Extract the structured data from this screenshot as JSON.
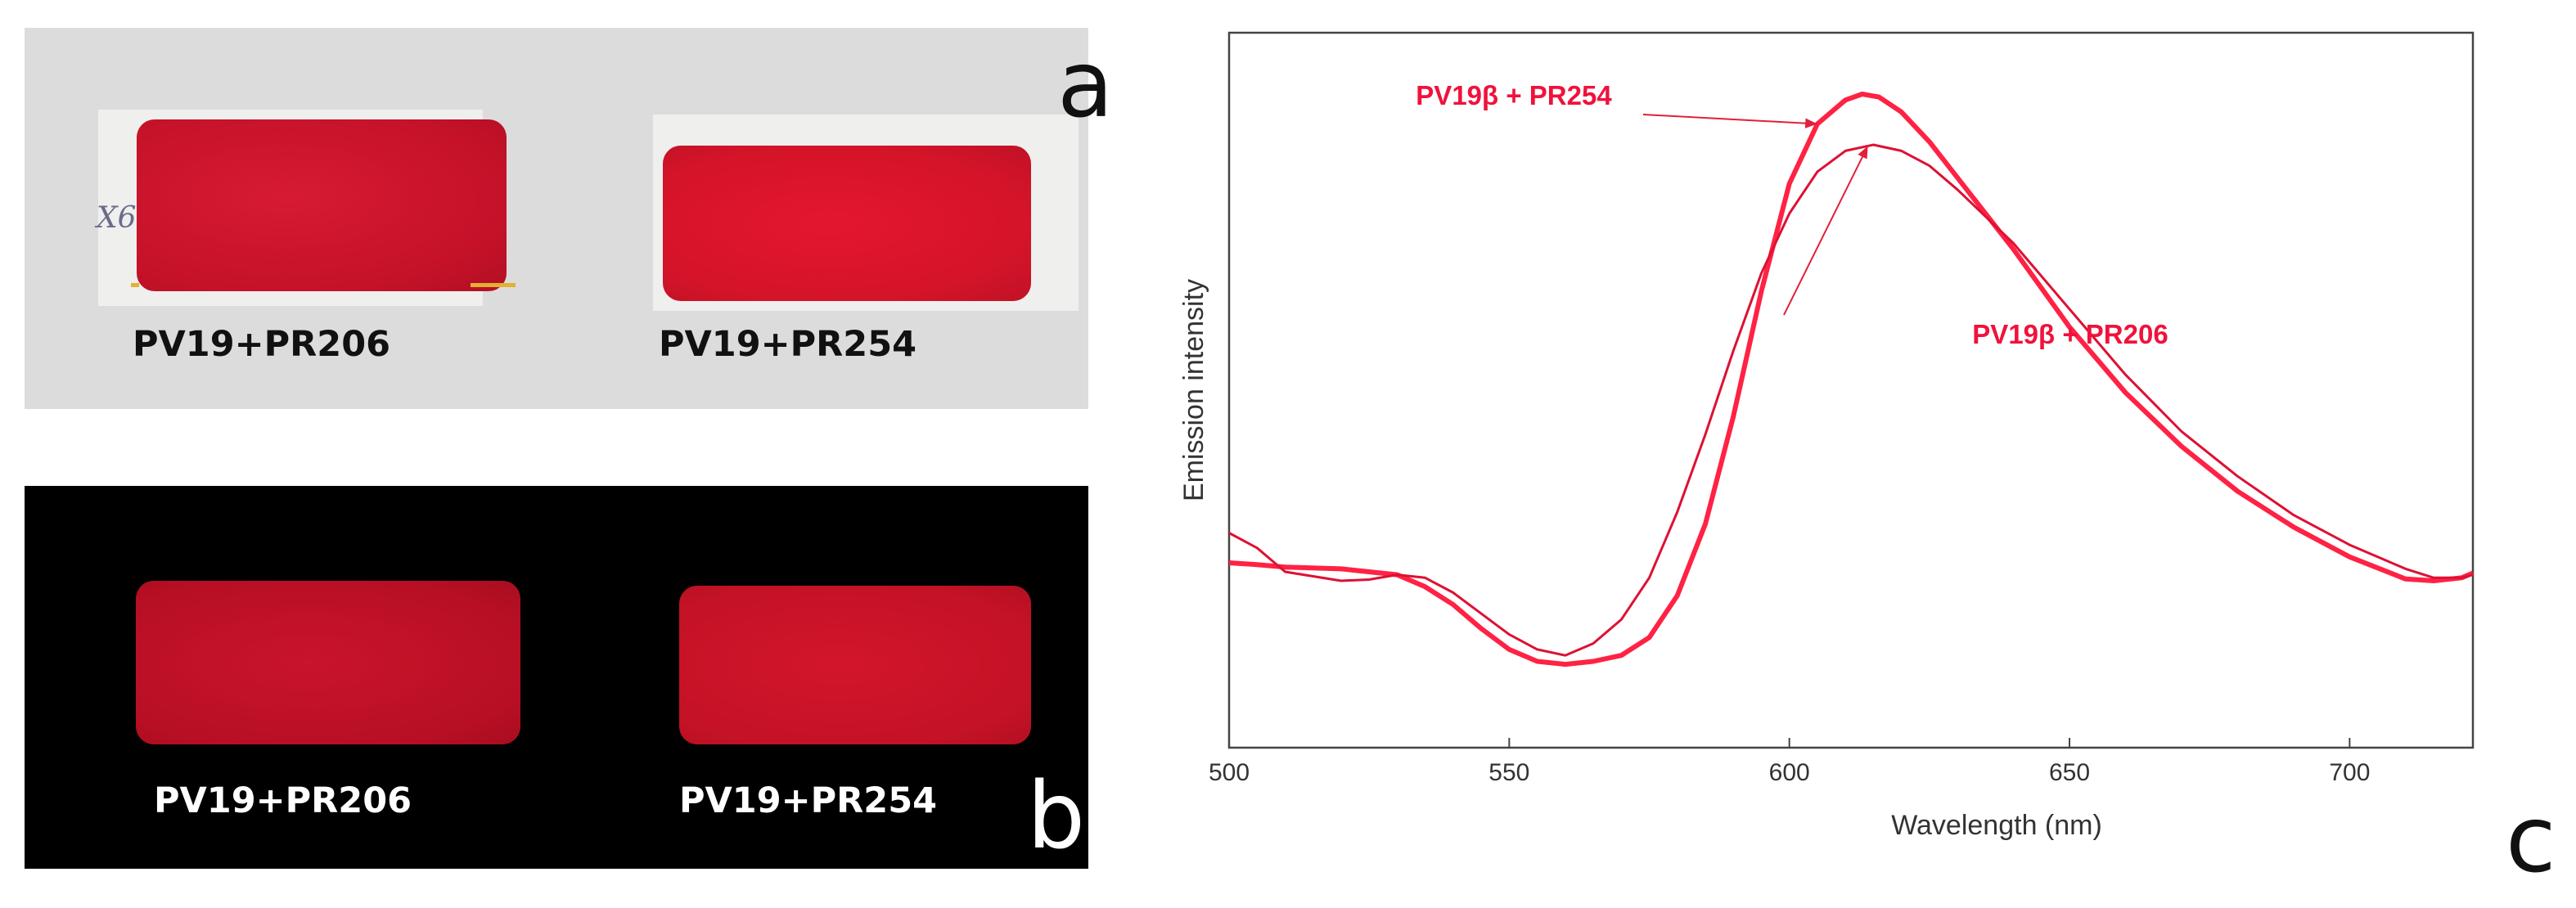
{
  "panel_a": {
    "letter": "a",
    "swatch_labels": [
      "PV19+PR206",
      "PV19+PR254"
    ],
    "pencil_mark": "X6"
  },
  "panel_b": {
    "letter": "b",
    "swatch_labels": [
      "PV19+PR206",
      "PV19+PR254"
    ]
  },
  "panel_c": {
    "letter": "c"
  },
  "chart_data": {
    "type": "line",
    "title": "",
    "xlabel": "Wavelength (nm)",
    "ylabel": "Emission intensity",
    "xlim": [
      500,
      722
    ],
    "ylim": [
      0,
      1
    ],
    "xticks": [
      500,
      550,
      600,
      650,
      700
    ],
    "xtick_labels": [
      "500",
      "550",
      "600",
      "650",
      "700"
    ],
    "y_ticks_shown": false,
    "grid": false,
    "series": [
      {
        "name": "PV19β + PR254",
        "color": "#ff2244",
        "x": [
          500,
          505,
          510,
          520,
          530,
          535,
          540,
          545,
          550,
          555,
          560,
          565,
          570,
          575,
          580,
          585,
          590,
          595,
          600,
          605,
          610,
          613,
          616,
          620,
          625,
          630,
          640,
          650,
          660,
          670,
          680,
          690,
          700,
          710,
          715,
          720,
          722
        ],
        "values": [
          0.215,
          0.212,
          0.208,
          0.205,
          0.195,
          0.175,
          0.145,
          0.105,
          0.07,
          0.05,
          0.045,
          0.05,
          0.06,
          0.09,
          0.16,
          0.28,
          0.46,
          0.67,
          0.85,
          0.95,
          0.99,
          1.0,
          0.995,
          0.97,
          0.92,
          0.86,
          0.74,
          0.61,
          0.5,
          0.41,
          0.335,
          0.275,
          0.225,
          0.188,
          0.185,
          0.19,
          0.198
        ]
      },
      {
        "name": "PV19β + PR206",
        "color": "#dd1133",
        "x": [
          500,
          505,
          510,
          520,
          525,
          530,
          535,
          540,
          545,
          550,
          555,
          560,
          565,
          570,
          575,
          580,
          585,
          590,
          595,
          600,
          605,
          610,
          615,
          620,
          625,
          630,
          640,
          650,
          660,
          670,
          680,
          690,
          700,
          710,
          715,
          720,
          722
        ],
        "values": [
          0.265,
          0.24,
          0.2,
          0.185,
          0.187,
          0.195,
          0.19,
          0.165,
          0.13,
          0.095,
          0.07,
          0.06,
          0.08,
          0.12,
          0.19,
          0.3,
          0.43,
          0.57,
          0.7,
          0.8,
          0.87,
          0.905,
          0.915,
          0.905,
          0.88,
          0.84,
          0.75,
          0.64,
          0.53,
          0.435,
          0.36,
          0.295,
          0.245,
          0.205,
          0.19,
          0.19,
          0.195
        ]
      }
    ],
    "annotations": [
      {
        "text": "PV19β + PR254",
        "points_to_x": 605,
        "points_to_series": 0
      },
      {
        "text": "PV19β + PR206",
        "points_to_x": 614,
        "points_to_series": 1
      }
    ]
  }
}
